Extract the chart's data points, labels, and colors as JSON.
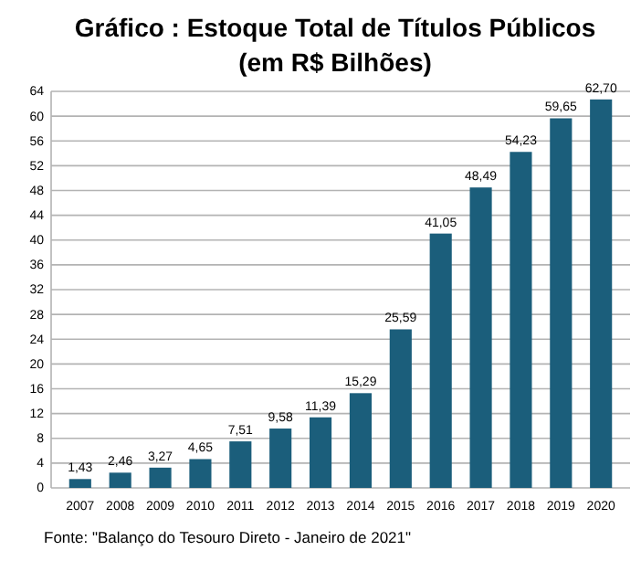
{
  "chart_data": {
    "type": "bar",
    "title": "Gráfico : Estoque Total de Títulos Públicos",
    "subtitle": "(em R$ Bilhões)",
    "categories": [
      "2007",
      "2008",
      "2009",
      "2010",
      "2011",
      "2012",
      "2013",
      "2014",
      "2015",
      "2016",
      "2017",
      "2018",
      "2019",
      "2020"
    ],
    "values": [
      1.43,
      2.46,
      3.27,
      4.65,
      7.51,
      9.58,
      11.39,
      15.29,
      25.59,
      41.05,
      48.49,
      54.23,
      59.65,
      62.7
    ],
    "value_labels": [
      "1,43",
      "2,46",
      "3,27",
      "4,65",
      "7,51",
      "9,58",
      "11,39",
      "15,29",
      "25,59",
      "41,05",
      "48,49",
      "54,23",
      "59,65",
      "62,70"
    ],
    "color": "#1b5e7b",
    "ylim": [
      0,
      64
    ],
    "yticks": [
      0,
      4,
      8,
      12,
      16,
      20,
      24,
      28,
      32,
      36,
      40,
      44,
      48,
      52,
      56,
      60,
      64
    ],
    "grid": "y",
    "annotations": [
      "Fonte: \"Balanço do Tesouro Direto - Janeiro de 2021\""
    ]
  }
}
